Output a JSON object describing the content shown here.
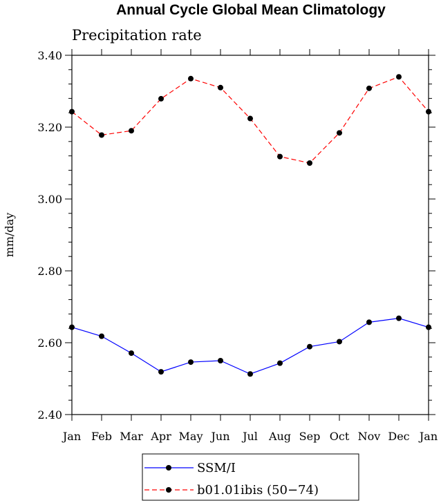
{
  "chart_data": {
    "type": "line",
    "title": "Annual Cycle Global Mean Climatology",
    "subtitle": "Precipitation rate",
    "xlabel": "",
    "ylabel": "mm/day",
    "categories": [
      "Jan",
      "Feb",
      "Mar",
      "Apr",
      "May",
      "Jun",
      "Jul",
      "Aug",
      "Sep",
      "Oct",
      "Nov",
      "Dec",
      "Jan"
    ],
    "ylim": [
      2.4,
      3.4
    ],
    "yticks": [
      "2.40",
      "2.60",
      "2.80",
      "3.00",
      "3.20",
      "3.40"
    ],
    "grid": false,
    "legend_position": "bottom",
    "series": [
      {
        "name": "SSM/I",
        "color": "#0000ff",
        "dash": "solid",
        "marker": "filled-circle",
        "values": [
          2.643,
          2.618,
          2.571,
          2.519,
          2.546,
          2.55,
          2.513,
          2.543,
          2.589,
          2.603,
          2.657,
          2.668,
          2.643
        ]
      },
      {
        "name": "b01.01ibis (50−74)",
        "color": "#ff0000",
        "dash": "dashed",
        "marker": "filled-circle",
        "values": [
          3.243,
          3.178,
          3.19,
          3.279,
          3.335,
          3.31,
          3.224,
          3.118,
          3.1,
          3.184,
          3.308,
          3.34,
          3.243
        ]
      }
    ]
  }
}
